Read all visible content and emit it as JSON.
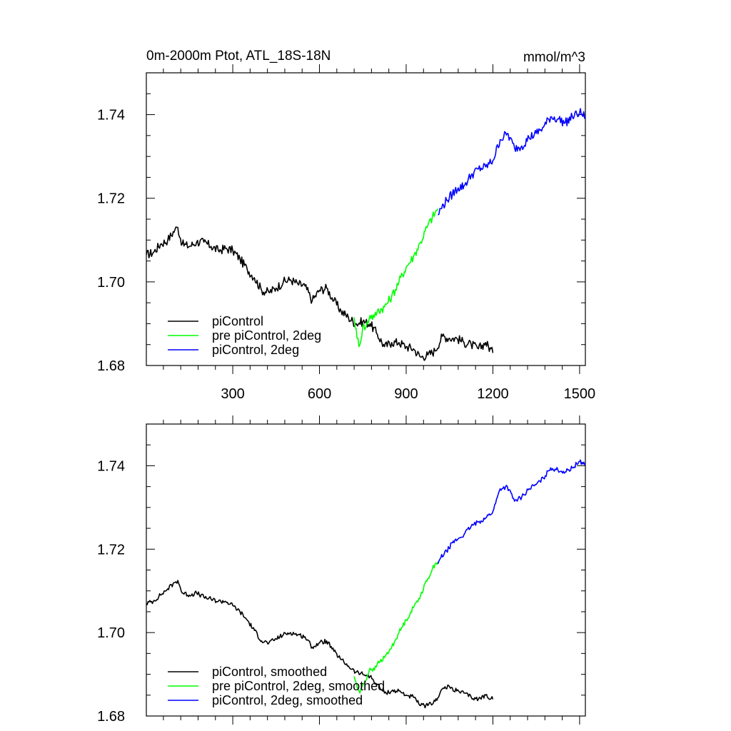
{
  "figure": {
    "title_left": "0m-2000m Ptot, ATL_18S-18N",
    "title_right": "mmol/m^3"
  },
  "chart_data": [
    {
      "type": "line",
      "title": "0m-2000m Ptot, ATL_18S-18N",
      "units": "mmol/m^3",
      "xlim": [
        1,
        1520
      ],
      "ylim": [
        1.68,
        1.75
      ],
      "x_ticks": [
        300,
        600,
        900,
        1200,
        1500
      ],
      "x_tick_labels_shown": true,
      "y_ticks": [
        1.68,
        1.7,
        1.72,
        1.74
      ],
      "y_tick_labels": [
        "1.68",
        "1.70",
        "1.72",
        "1.74"
      ],
      "grid": false,
      "legend_position": "bottom-left",
      "series": [
        {
          "name": "piControl",
          "color": "#000000",
          "x": [
            1,
            25,
            50,
            75,
            100,
            110,
            125,
            150,
            175,
            200,
            225,
            250,
            275,
            300,
            325,
            350,
            375,
            400,
            425,
            450,
            475,
            500,
            525,
            550,
            575,
            600,
            625,
            650,
            675,
            700,
            725,
            750,
            775,
            800,
            825,
            850,
            875,
            900,
            925,
            950,
            975,
            1000,
            1025,
            1050,
            1075,
            1100,
            1125,
            1150,
            1175,
            1200
          ],
          "y": [
            1.7065,
            1.707,
            1.709,
            1.71,
            1.7125,
            1.713,
            1.709,
            1.7085,
            1.7095,
            1.7095,
            1.7085,
            1.7075,
            1.708,
            1.7075,
            1.7055,
            1.703,
            1.701,
            1.698,
            1.6975,
            1.6985,
            1.7,
            1.7005,
            1.6995,
            1.699,
            1.6955,
            1.698,
            1.6985,
            1.6955,
            1.693,
            1.6915,
            1.69,
            1.6905,
            1.69,
            1.6875,
            1.6845,
            1.6855,
            1.6855,
            1.6845,
            1.684,
            1.682,
            1.6825,
            1.6835,
            1.687,
            1.6865,
            1.6865,
            1.6855,
            1.685,
            1.684,
            1.6855,
            1.683
          ]
        },
        {
          "name": "pre piControl, 2deg",
          "color": "#00ff00",
          "x": [
            720,
            730,
            740,
            750,
            760,
            775,
            790,
            800,
            825,
            850,
            875,
            900,
            925,
            950,
            975,
            1000,
            1010
          ],
          "y": [
            1.6915,
            1.6865,
            1.685,
            1.6895,
            1.689,
            1.692,
            1.6915,
            1.693,
            1.694,
            1.6965,
            1.7,
            1.7035,
            1.706,
            1.7095,
            1.7135,
            1.7165,
            1.7175
          ]
        },
        {
          "name": "piControl, 2deg",
          "color": "#0000ff",
          "x": [
            1010,
            1020,
            1040,
            1060,
            1080,
            1100,
            1125,
            1150,
            1175,
            1200,
            1225,
            1250,
            1275,
            1300,
            1325,
            1350,
            1375,
            1400,
            1425,
            1450,
            1475,
            1500,
            1520
          ],
          "y": [
            1.716,
            1.7175,
            1.7195,
            1.721,
            1.7225,
            1.723,
            1.7255,
            1.727,
            1.7275,
            1.729,
            1.734,
            1.7355,
            1.732,
            1.7325,
            1.7345,
            1.7355,
            1.737,
            1.7395,
            1.739,
            1.738,
            1.7395,
            1.7405,
            1.7395
          ]
        }
      ]
    },
    {
      "type": "line",
      "xlim": [
        1,
        1520
      ],
      "ylim": [
        1.68,
        1.75
      ],
      "x_ticks": [
        300,
        600,
        900,
        1200,
        1500
      ],
      "x_tick_labels_shown": false,
      "y_ticks": [
        1.68,
        1.7,
        1.72,
        1.74
      ],
      "y_tick_labels": [
        "1.68",
        "1.70",
        "1.72",
        "1.74"
      ],
      "grid": false,
      "legend_position": "bottom-left",
      "series": [
        {
          "name": "piControl, smoothed",
          "color": "#000000",
          "x": [
            1,
            25,
            50,
            75,
            100,
            110,
            125,
            150,
            175,
            200,
            225,
            250,
            275,
            300,
            325,
            350,
            375,
            400,
            425,
            450,
            475,
            500,
            525,
            550,
            575,
            600,
            625,
            650,
            675,
            700,
            725,
            750,
            775,
            800,
            825,
            850,
            875,
            900,
            925,
            950,
            975,
            1000,
            1025,
            1050,
            1075,
            1100,
            1125,
            1150,
            1175,
            1200
          ],
          "y": [
            1.707,
            1.7075,
            1.709,
            1.7105,
            1.712,
            1.7125,
            1.7095,
            1.709,
            1.7095,
            1.7085,
            1.708,
            1.7075,
            1.7075,
            1.7065,
            1.705,
            1.703,
            1.7005,
            1.698,
            1.6975,
            1.6985,
            1.6995,
            1.7,
            1.6995,
            1.699,
            1.6965,
            1.6975,
            1.698,
            1.6955,
            1.6935,
            1.692,
            1.6905,
            1.69,
            1.6895,
            1.6875,
            1.6855,
            1.686,
            1.686,
            1.685,
            1.6845,
            1.6825,
            1.6825,
            1.6835,
            1.6865,
            1.687,
            1.686,
            1.6855,
            1.6845,
            1.684,
            1.685,
            1.684
          ]
        },
        {
          "name": "pre piControl, 2deg, smoothed",
          "color": "#00ff00",
          "x": [
            720,
            730,
            740,
            750,
            760,
            775,
            790,
            800,
            825,
            850,
            875,
            900,
            925,
            950,
            975,
            1000,
            1010
          ],
          "y": [
            1.6895,
            1.687,
            1.6855,
            1.6875,
            1.6885,
            1.6915,
            1.691,
            1.6925,
            1.694,
            1.6965,
            1.7,
            1.703,
            1.706,
            1.709,
            1.713,
            1.7165,
            1.717
          ]
        },
        {
          "name": "piControl, 2deg, smoothed",
          "color": "#0000ff",
          "x": [
            1010,
            1020,
            1040,
            1060,
            1080,
            1100,
            1125,
            1150,
            1175,
            1200,
            1225,
            1250,
            1275,
            1300,
            1325,
            1350,
            1375,
            1400,
            1425,
            1450,
            1475,
            1500,
            1520
          ],
          "y": [
            1.7165,
            1.718,
            1.7195,
            1.7215,
            1.7225,
            1.7235,
            1.7255,
            1.7265,
            1.7275,
            1.729,
            1.7345,
            1.735,
            1.7315,
            1.7325,
            1.7345,
            1.7355,
            1.737,
            1.7395,
            1.739,
            1.7385,
            1.7395,
            1.741,
            1.7405
          ]
        }
      ]
    }
  ]
}
